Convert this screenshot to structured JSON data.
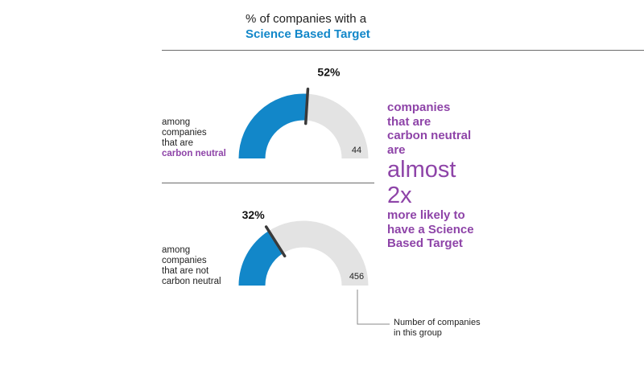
{
  "title": {
    "line1": "% of companies with a",
    "line2": "Science Based Target"
  },
  "chart_data": {
    "type": "gauge",
    "series": [
      {
        "label_lines": [
          "among",
          "companies",
          "that are"
        ],
        "label_accent": "carbon neutral",
        "value": 52,
        "value_label": "52%",
        "count": 44,
        "count_label": "44"
      },
      {
        "label_lines": [
          "among",
          "companies",
          "that are not",
          "carbon neutral"
        ],
        "label_accent": "",
        "value": 32,
        "value_label": "32%",
        "count": 456,
        "count_label": "456"
      }
    ],
    "range": [
      0,
      100
    ]
  },
  "callout": {
    "lines_top": [
      "companies",
      "that are",
      "carbon neutral",
      "are"
    ],
    "big_lines": [
      "almost",
      "2x"
    ],
    "lines_bottom": [
      "more likely to",
      "have a Science",
      "Based Target"
    ]
  },
  "note": {
    "lines": [
      "Number of companies",
      "in this group"
    ]
  },
  "colors": {
    "fill": "#1287c9",
    "track": "#e3e3e3",
    "accent": "#8e44a8",
    "needle": "#3a3a3a"
  }
}
